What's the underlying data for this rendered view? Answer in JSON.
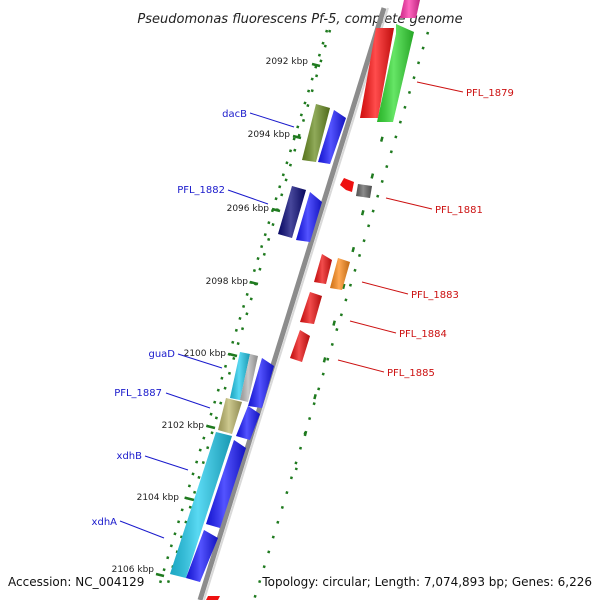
{
  "title": "Pseudomonas fluorescens Pf-5, complete genome",
  "footer": {
    "accession": "Accession: NC_004129",
    "topology": "Topology: circular; Length: 7,074,893 bp; Genes: 6,226"
  },
  "colors": {
    "backbone": "#8c8c8c",
    "tick": "#1f7a1f",
    "left_label": "#1a1acc",
    "right_label": "#cc1111"
  },
  "ticks": [
    "2092 kbp",
    "2094 kbp",
    "2096 kbp",
    "2098 kbp",
    "2100 kbp",
    "2102 kbp",
    "2104 kbp",
    "2106 kbp"
  ],
  "left_labels": [
    "dacB",
    "PFL_1882",
    "guaD",
    "PFL_1887",
    "xdhB",
    "xdhA"
  ],
  "right_labels": [
    "PFL_1879",
    "PFL_1881",
    "PFL_1883",
    "PFL_1884",
    "PFL_1885"
  ]
}
